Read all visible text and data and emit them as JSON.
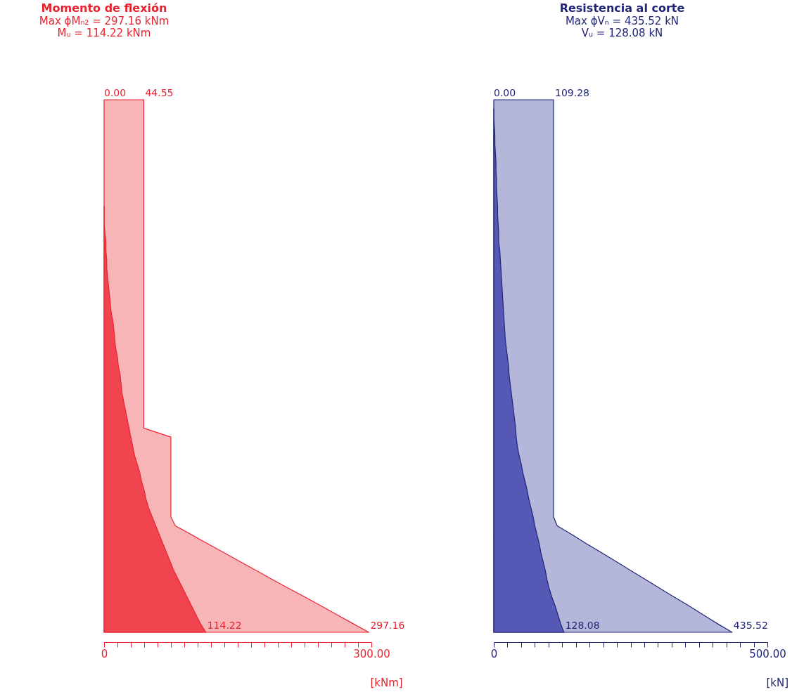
{
  "chart_data": [
    {
      "type": "area",
      "orientation": "horizontal",
      "title": "Momento de flexión",
      "subtitle": "Max ϕMₙ₂ = 297.16 kNm\nMᵤ = 114.22 kNm",
      "xlabel": "[kNm]",
      "tick_labels": "x",
      "xlim": [
        0,
        300
      ],
      "xticks": [
        {
          "value": 0,
          "label": "0"
        },
        {
          "value": 15,
          "label": null
        },
        {
          "value": 30,
          "label": null
        },
        {
          "value": 45,
          "label": null
        },
        {
          "value": 60,
          "label": null
        },
        {
          "value": 75,
          "label": null
        },
        {
          "value": 90,
          "label": null
        },
        {
          "value": 105,
          "label": null
        },
        {
          "value": 120,
          "label": null
        },
        {
          "value": 135,
          "label": null
        },
        {
          "value": 150,
          "label": null
        },
        {
          "value": 165,
          "label": null
        },
        {
          "value": 180,
          "label": null
        },
        {
          "value": 195,
          "label": null
        },
        {
          "value": 210,
          "label": null
        },
        {
          "value": 225,
          "label": null
        },
        {
          "value": 240,
          "label": null
        },
        {
          "value": 255,
          "label": null
        },
        {
          "value": 270,
          "label": null
        },
        {
          "value": 285,
          "label": null
        },
        {
          "value": 300,
          "label": "300.00"
        }
      ],
      "categories": [
        null,
        null,
        null,
        null,
        null,
        null,
        null,
        null,
        null,
        null,
        null,
        null,
        null,
        null,
        null,
        null,
        null,
        null,
        null,
        null,
        null,
        null,
        null,
        null,
        null,
        null,
        null,
        null,
        null,
        null,
        null,
        null,
        null,
        null,
        null,
        null,
        null,
        null,
        null,
        null,
        null,
        null,
        null,
        null,
        null,
        null,
        null,
        null,
        null,
        null,
        null,
        null,
        null,
        null,
        null,
        null,
        null,
        null,
        null,
        null,
        null
      ],
      "annotations": [
        "0.00"
      ],
      "series": [
        {
          "color": "#f8b5b8",
          "values": [
            44.55,
            44.55,
            44.55,
            44.55,
            44.55,
            44.55,
            44.55,
            44.55,
            44.55,
            44.55,
            44.55,
            44.55,
            44.55,
            44.55,
            44.55,
            44.55,
            44.55,
            44.55,
            44.55,
            44.55,
            44.55,
            44.55,
            44.55,
            44.55,
            44.55,
            44.55,
            44.55,
            44.55,
            44.55,
            44.55,
            44.55,
            44.55,
            44.55,
            44.55,
            44.55,
            44.55,
            44.55,
            44.55,
            75,
            75,
            75,
            75,
            75,
            75,
            75,
            75,
            75,
            75,
            80,
            98,
            116,
            134,
            152,
            170,
            188,
            206,
            225,
            243,
            261,
            279,
            297.16
          ],
          "value_labels": [
            "44.55",
            null,
            null,
            null,
            null,
            null,
            null,
            null,
            null,
            null,
            null,
            null,
            null,
            null,
            null,
            null,
            null,
            null,
            null,
            null,
            null,
            null,
            null,
            null,
            null,
            null,
            null,
            null,
            null,
            null,
            null,
            null,
            null,
            null,
            null,
            null,
            null,
            null,
            null,
            null,
            null,
            null,
            null,
            null,
            null,
            null,
            null,
            null,
            null,
            null,
            null,
            null,
            null,
            null,
            null,
            null,
            null,
            null,
            null,
            null,
            "297.16"
          ]
        },
        {
          "color": "#f0454f",
          "values": [
            null,
            null,
            null,
            null,
            null,
            null,
            null,
            null,
            null,
            null,
            null,
            null,
            0,
            0,
            0,
            1,
            2,
            2,
            3,
            3,
            4,
            5,
            6,
            7,
            8,
            10,
            11,
            12,
            13,
            15,
            16,
            18,
            19,
            20,
            22,
            24,
            26,
            28,
            30,
            32,
            34,
            37,
            40,
            42,
            45,
            47,
            50,
            54,
            58,
            62,
            66,
            70,
            74,
            78,
            83,
            88,
            93,
            98,
            103,
            108,
            114.22
          ],
          "value_labels": [
            null,
            null,
            null,
            null,
            null,
            null,
            null,
            null,
            null,
            null,
            null,
            null,
            null,
            null,
            null,
            null,
            null,
            null,
            null,
            null,
            null,
            null,
            null,
            null,
            null,
            null,
            null,
            null,
            null,
            null,
            null,
            null,
            null,
            null,
            null,
            null,
            null,
            null,
            null,
            null,
            null,
            null,
            null,
            null,
            null,
            null,
            null,
            null,
            null,
            null,
            null,
            null,
            null,
            null,
            null,
            null,
            null,
            null,
            null,
            null,
            "114.22"
          ]
        }
      ]
    },
    {
      "type": "area",
      "orientation": "horizontal",
      "title": "Resistencia al corte",
      "subtitle": "Max ϕVₙ = 435.52 kN\nVᵤ = 128.08 kN",
      "xlabel": "[kN]",
      "tick_labels": "x",
      "xlim": [
        0,
        500
      ],
      "xticks": [
        {
          "value": 0,
          "label": "0"
        },
        {
          "value": 25,
          "label": null
        },
        {
          "value": 50,
          "label": null
        },
        {
          "value": 75,
          "label": null
        },
        {
          "value": 100,
          "label": null
        },
        {
          "value": 125,
          "label": null
        },
        {
          "value": 150,
          "label": null
        },
        {
          "value": 175,
          "label": null
        },
        {
          "value": 200,
          "label": null
        },
        {
          "value": 225,
          "label": null
        },
        {
          "value": 250,
          "label": null
        },
        {
          "value": 275,
          "label": null
        },
        {
          "value": 300,
          "label": null
        },
        {
          "value": 325,
          "label": null
        },
        {
          "value": 350,
          "label": null
        },
        {
          "value": 375,
          "label": null
        },
        {
          "value": 400,
          "label": null
        },
        {
          "value": 425,
          "label": null
        },
        {
          "value": 450,
          "label": null
        },
        {
          "value": 475,
          "label": null
        },
        {
          "value": 500,
          "label": "500.00"
        }
      ],
      "categories": [
        null,
        null,
        null,
        null,
        null,
        null,
        null,
        null,
        null,
        null,
        null,
        null,
        null,
        null,
        null,
        null,
        null,
        null,
        null,
        null,
        null,
        null,
        null,
        null,
        null,
        null,
        null,
        null,
        null,
        null,
        null,
        null,
        null,
        null,
        null,
        null,
        null,
        null,
        null,
        null,
        null,
        null,
        null,
        null,
        null,
        null,
        null,
        null,
        null,
        null,
        null,
        null,
        null,
        null,
        null,
        null,
        null,
        null,
        null,
        null,
        null
      ],
      "annotations": [
        "0.00"
      ],
      "series": [
        {
          "color": "#b4b6da",
          "values": [
            109.28,
            109.28,
            109.28,
            109.28,
            109.28,
            109.28,
            109.28,
            109.28,
            109.28,
            109.28,
            109.28,
            109.28,
            109.28,
            109.28,
            109.28,
            109.28,
            109.28,
            109.28,
            109.28,
            109.28,
            109.28,
            109.28,
            109.28,
            109.28,
            109.28,
            109.28,
            109.28,
            109.28,
            109.28,
            109.28,
            109.28,
            109.28,
            109.28,
            109.28,
            109.28,
            109.28,
            109.28,
            109.28,
            109.28,
            109.28,
            109.28,
            109.28,
            109.28,
            109.28,
            109.28,
            109.28,
            109.28,
            109.28,
            116,
            143,
            169,
            196,
            223,
            249,
            276,
            302,
            329,
            356,
            382,
            408,
            435.52
          ],
          "value_labels": [
            "109.28",
            null,
            null,
            null,
            null,
            null,
            null,
            null,
            null,
            null,
            null,
            null,
            null,
            null,
            null,
            null,
            null,
            null,
            null,
            null,
            null,
            null,
            null,
            null,
            null,
            null,
            null,
            null,
            null,
            null,
            null,
            null,
            null,
            null,
            null,
            null,
            null,
            null,
            null,
            null,
            null,
            null,
            null,
            null,
            null,
            null,
            null,
            null,
            null,
            null,
            null,
            null,
            null,
            null,
            null,
            null,
            null,
            null,
            null,
            null,
            "435.52"
          ]
        },
        {
          "color": "#5558b4",
          "values": [
            null,
            0,
            0,
            1,
            2,
            2,
            3,
            4,
            4,
            5,
            5,
            6,
            7,
            7,
            8,
            9,
            9,
            11,
            12,
            13,
            14,
            15,
            16,
            17,
            18,
            19,
            20,
            21,
            23,
            25,
            27,
            28,
            30,
            32,
            34,
            36,
            38,
            40,
            41,
            43,
            46,
            50,
            53,
            57,
            61,
            64,
            68,
            72,
            75,
            79,
            83,
            86,
            90,
            94,
            97,
            101,
            106,
            112,
            117,
            122,
            128.08
          ],
          "value_labels": [
            null,
            null,
            null,
            null,
            null,
            null,
            null,
            null,
            null,
            null,
            null,
            null,
            null,
            null,
            null,
            null,
            null,
            null,
            null,
            null,
            null,
            null,
            null,
            null,
            null,
            null,
            null,
            null,
            null,
            null,
            null,
            null,
            null,
            null,
            null,
            null,
            null,
            null,
            null,
            null,
            null,
            null,
            null,
            null,
            null,
            null,
            null,
            null,
            null,
            null,
            null,
            null,
            null,
            null,
            null,
            null,
            null,
            null,
            null,
            null,
            "128.08"
          ]
        }
      ]
    }
  ]
}
